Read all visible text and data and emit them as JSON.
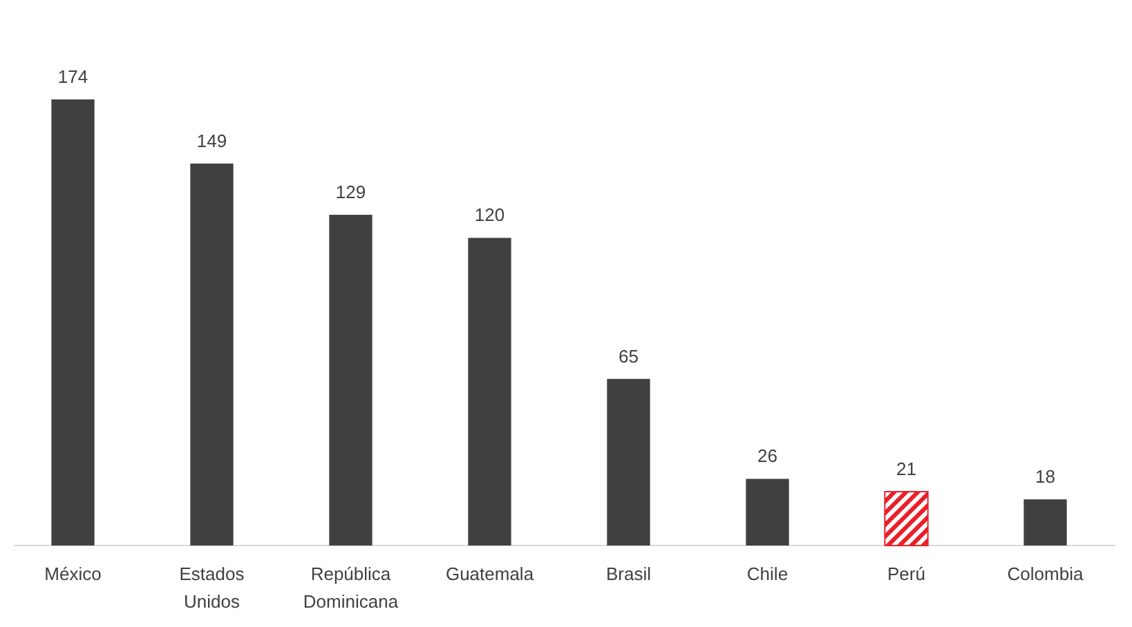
{
  "chart_data": {
    "type": "bar",
    "categories": [
      "México",
      "Estados Unidos",
      "República Dominicana",
      "Guatemala",
      "Brasil",
      "Chile",
      "Perú",
      "Colombia"
    ],
    "values": [
      174,
      149,
      129,
      120,
      65,
      26,
      21,
      18
    ],
    "colors": [
      "#404040",
      "#404040",
      "#404040",
      "#404040",
      "#404040",
      "#404040",
      "#e8202a",
      "#404040"
    ],
    "data_labels": true
  }
}
